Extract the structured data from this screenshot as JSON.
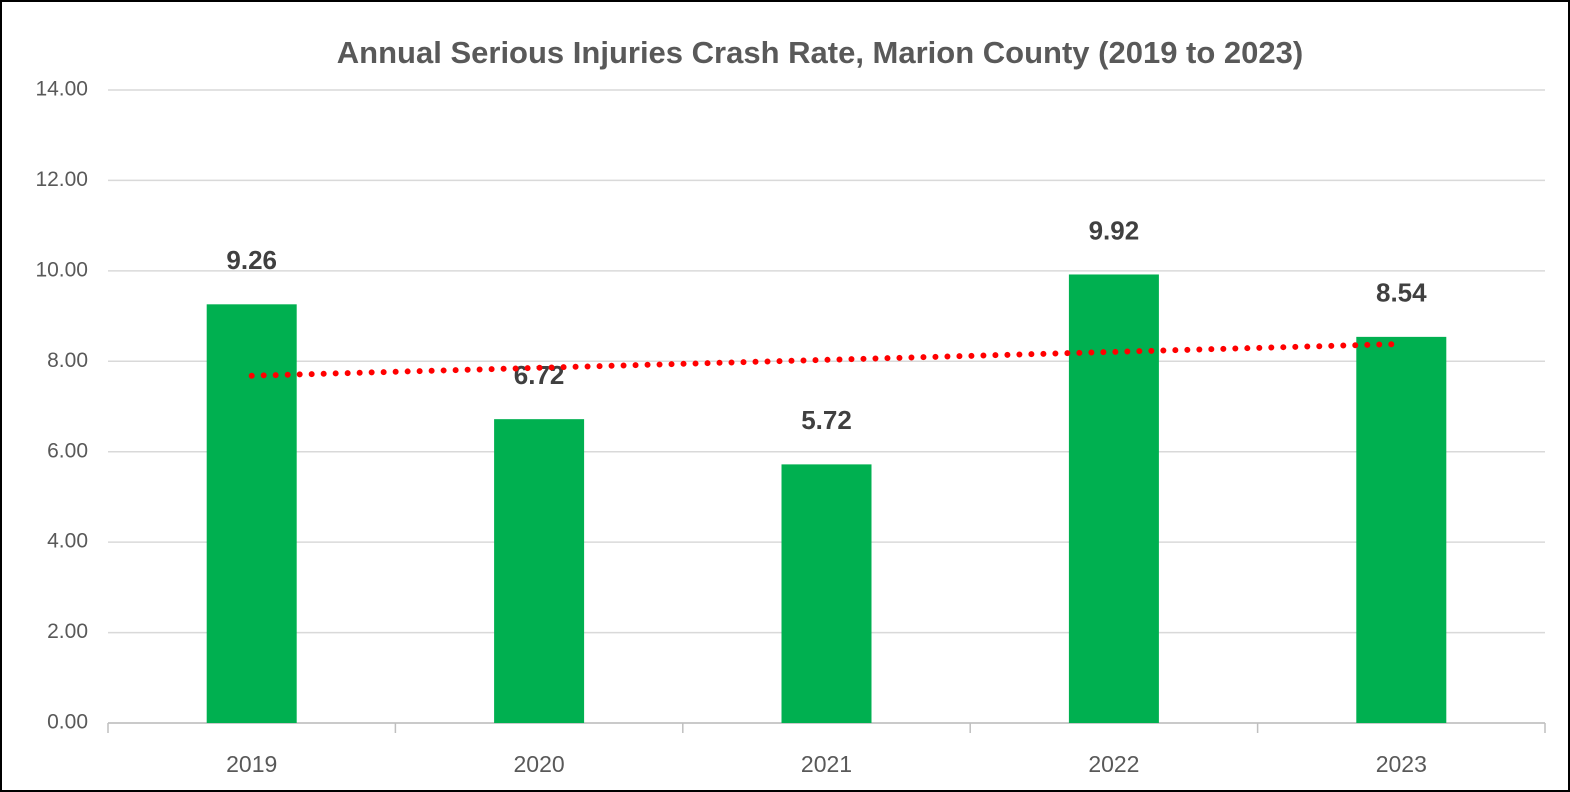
{
  "chart_data": {
    "type": "bar",
    "title": "Annual Serious Injuries Crash Rate, Marion County (2019 to 2023)",
    "categories": [
      "2019",
      "2020",
      "2021",
      "2022",
      "2023"
    ],
    "values": [
      9.26,
      6.72,
      5.72,
      9.92,
      8.54
    ],
    "color": "#00b050",
    "trendline": {
      "color": "#ff0000",
      "values": [
        7.68,
        7.856,
        8.032,
        8.208,
        8.384
      ]
    },
    "ylim": [
      0,
      14
    ],
    "yticks": [
      {
        "value": 0,
        "label": "0.00"
      },
      {
        "value": 2,
        "label": "2.00"
      },
      {
        "value": 4,
        "label": "4.00"
      },
      {
        "value": 6,
        "label": "6.00"
      },
      {
        "value": 8,
        "label": "8.00"
      },
      {
        "value": 10,
        "label": "10.00"
      },
      {
        "value": 12,
        "label": "12.00"
      },
      {
        "value": 14,
        "label": "14.00"
      }
    ],
    "grid": true
  }
}
